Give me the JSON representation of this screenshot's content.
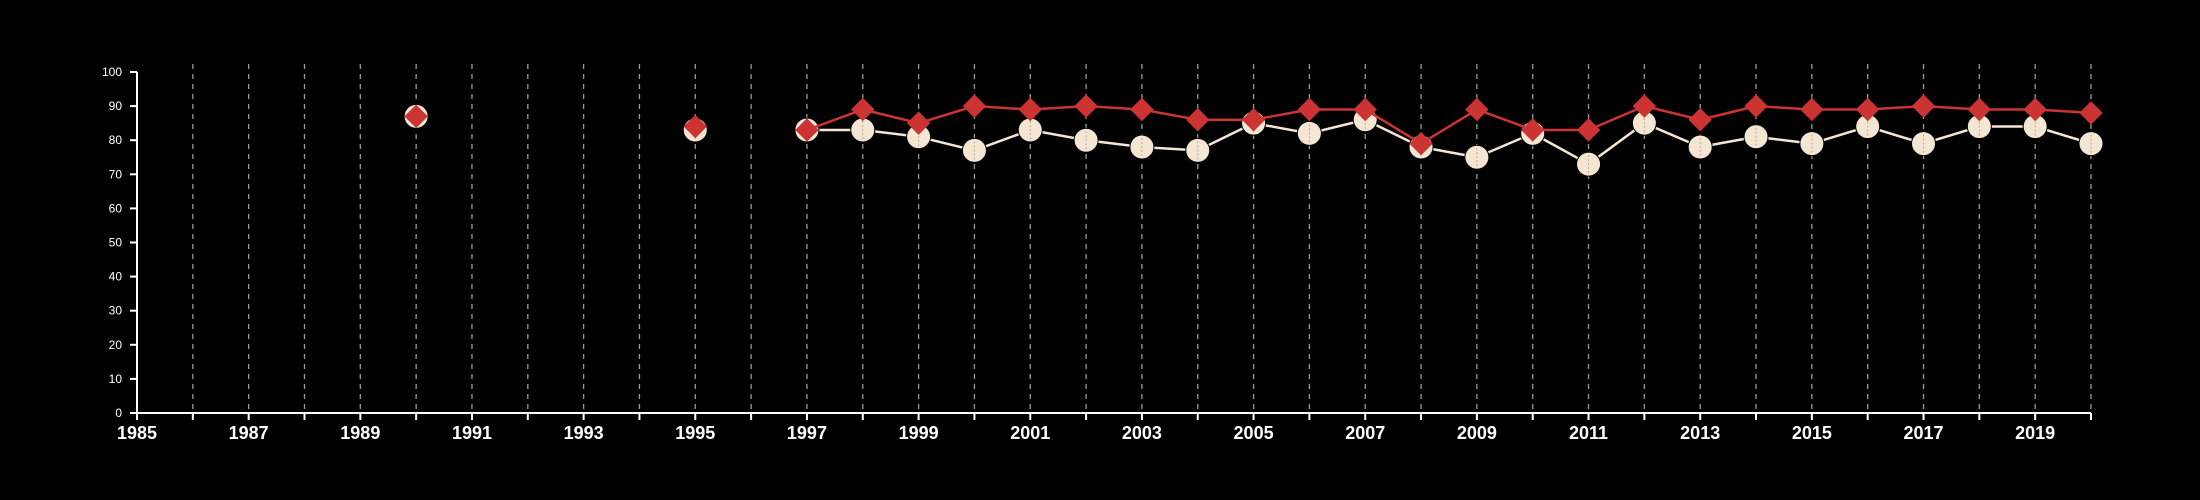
{
  "chart_data": {
    "type": "line",
    "title": "",
    "xlabel": "",
    "ylabel": "",
    "xlim": [
      1985,
      2020
    ],
    "ylim": [
      0,
      100
    ],
    "x_ticks": [
      1985,
      1987,
      1989,
      1991,
      1993,
      1995,
      1997,
      1999,
      2001,
      2003,
      2005,
      2007,
      2009,
      2011,
      2013,
      2015,
      2017,
      2019
    ],
    "y_ticks": [
      0,
      10,
      20,
      30,
      40,
      50,
      60,
      70,
      80,
      90,
      100
    ],
    "grid": "vertical dashed lines at every year",
    "background_color": "#000000",
    "series": [
      {
        "marker": "circle",
        "color": "#f5e6d3",
        "points": [
          {
            "x": 1990,
            "y": 87
          },
          {
            "x": 1995,
            "y": 83
          },
          {
            "x": 1997,
            "y": 83
          },
          {
            "x": 1998,
            "y": 83
          },
          {
            "x": 1999,
            "y": 81
          },
          {
            "x": 2000,
            "y": 77
          },
          {
            "x": 2001,
            "y": 83
          },
          {
            "x": 2002,
            "y": 80
          },
          {
            "x": 2003,
            "y": 78
          },
          {
            "x": 2004,
            "y": 77
          },
          {
            "x": 2005,
            "y": 85
          },
          {
            "x": 2006,
            "y": 82
          },
          {
            "x": 2007,
            "y": 86
          },
          {
            "x": 2008,
            "y": 78
          },
          {
            "x": 2009,
            "y": 75
          },
          {
            "x": 2010,
            "y": 82
          },
          {
            "x": 2011,
            "y": 73
          },
          {
            "x": 2012,
            "y": 85
          },
          {
            "x": 2013,
            "y": 78
          },
          {
            "x": 2014,
            "y": 81
          },
          {
            "x": 2015,
            "y": 79
          },
          {
            "x": 2016,
            "y": 84
          },
          {
            "x": 2017,
            "y": 79
          },
          {
            "x": 2018,
            "y": 84
          },
          {
            "x": 2019,
            "y": 84
          },
          {
            "x": 2020,
            "y": 79
          }
        ]
      },
      {
        "marker": "diamond",
        "color": "#cc3333",
        "points": [
          {
            "x": 1990,
            "y": 87
          },
          {
            "x": 1995,
            "y": 84
          },
          {
            "x": 1997,
            "y": 83
          },
          {
            "x": 1998,
            "y": 89
          },
          {
            "x": 1999,
            "y": 85
          },
          {
            "x": 2000,
            "y": 90
          },
          {
            "x": 2001,
            "y": 89
          },
          {
            "x": 2002,
            "y": 90
          },
          {
            "x": 2003,
            "y": 89
          },
          {
            "x": 2004,
            "y": 86
          },
          {
            "x": 2005,
            "y": 86
          },
          {
            "x": 2006,
            "y": 89
          },
          {
            "x": 2007,
            "y": 89
          },
          {
            "x": 2008,
            "y": 79
          },
          {
            "x": 2009,
            "y": 89
          },
          {
            "x": 2010,
            "y": 83
          },
          {
            "x": 2011,
            "y": 83
          },
          {
            "x": 2012,
            "y": 90
          },
          {
            "x": 2013,
            "y": 86
          },
          {
            "x": 2014,
            "y": 90
          },
          {
            "x": 2015,
            "y": 89
          },
          {
            "x": 2016,
            "y": 89
          },
          {
            "x": 2017,
            "y": 90
          },
          {
            "x": 2018,
            "y": 89
          },
          {
            "x": 2019,
            "y": 89
          },
          {
            "x": 2020,
            "y": 88
          }
        ]
      }
    ]
  }
}
